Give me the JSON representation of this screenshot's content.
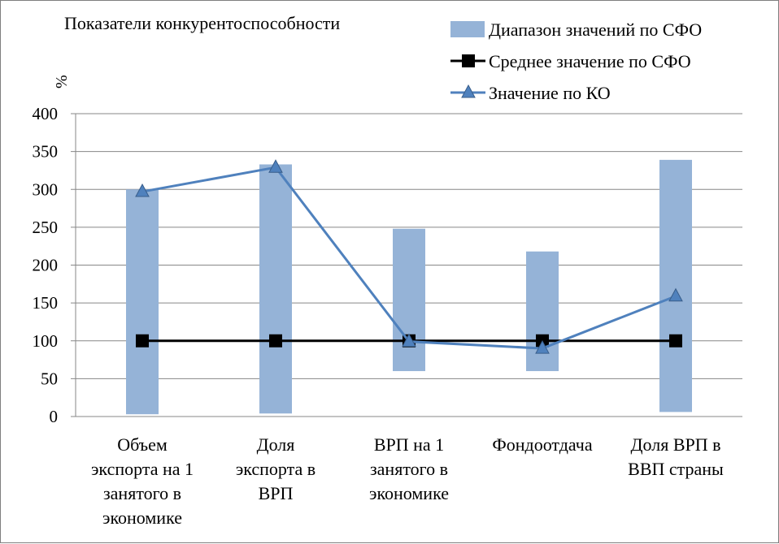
{
  "chart_data": {
    "type": "bar",
    "title": "Показатели конкурентоспособности",
    "ylabel": "%",
    "ylim": [
      0,
      400
    ],
    "yticks": [
      0,
      50,
      100,
      150,
      200,
      250,
      300,
      350,
      400
    ],
    "grid": true,
    "legend_position": "top-right",
    "categories": [
      "Объем экспорта на 1 занятого в экономике",
      "Доля экспорта в ВРП",
      "ВРП на 1 занятого в экономике",
      "Фондоотдача",
      "Доля ВРП в ВВП страны"
    ],
    "category_lines": [
      [
        "Объем",
        "экспорта на 1",
        "занятого в",
        "экономике"
      ],
      [
        "Доля",
        "экспорта в",
        "ВРП"
      ],
      [
        "ВРП на 1",
        "занятого в",
        "экономике"
      ],
      [
        "Фондоотдача"
      ],
      [
        "Доля ВРП в",
        "ВВП страны"
      ]
    ],
    "series": [
      {
        "name": "Диапазон значений по СФО",
        "kind": "range-bar",
        "color": "#95b3d7",
        "low": [
          3,
          4,
          60,
          60,
          6
        ],
        "high": [
          300,
          333,
          248,
          218,
          339
        ]
      },
      {
        "name": "Среднее значение по СФО",
        "kind": "line",
        "marker": "square",
        "color": "#000000",
        "values": [
          100,
          100,
          100,
          100,
          100
        ]
      },
      {
        "name": "Значение по КО",
        "kind": "line",
        "marker": "triangle",
        "color": "#4f81bd",
        "values": [
          297,
          329,
          99,
          90,
          159
        ]
      }
    ]
  }
}
